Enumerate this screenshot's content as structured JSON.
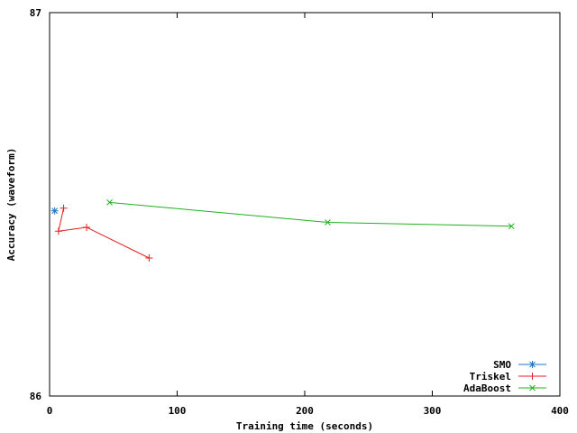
{
  "chart_data": {
    "type": "line",
    "title": "",
    "xlabel": "Training time (seconds)",
    "ylabel": "Accuracy (waveform)",
    "xlim": [
      0,
      400
    ],
    "ylim": [
      86,
      87
    ],
    "xticks": [
      0,
      100,
      200,
      300,
      400
    ],
    "yticks": [
      86,
      87
    ],
    "grid": false,
    "legend_position": "bottom-right",
    "series": [
      {
        "name": "SMO",
        "color": "#1f77c4",
        "marker": "asterisk",
        "x": [
          4
        ],
        "y": [
          86.483
        ]
      },
      {
        "name": "Triskel",
        "color": "#e02020",
        "marker": "plus",
        "x": [
          11,
          7,
          29,
          78
        ],
        "y": [
          86.49,
          86.43,
          86.44,
          86.36
        ]
      },
      {
        "name": "AdaBoost",
        "color": "#20b020",
        "marker": "cross",
        "x": [
          47,
          218,
          362
        ],
        "y": [
          86.505,
          86.453,
          86.443
        ]
      }
    ]
  }
}
